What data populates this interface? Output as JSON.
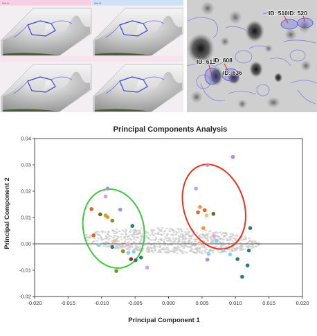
{
  "topLeft": {
    "tiles": [
      {
        "title": "Gel A",
        "band": "#f7cfe4"
      },
      {
        "title": "Gel B",
        "band": "#cfe1f7"
      },
      {
        "title": "",
        "band": "#f7e3ee"
      },
      {
        "title": "",
        "band": "#f7e3ee"
      }
    ]
  },
  "gel": {
    "labels": [
      "ID: 611",
      "ID: 608",
      "ID: 636",
      "ID: 510",
      "ID: 520"
    ]
  },
  "chart_data": {
    "type": "scatter",
    "title": "Principal Components Analysis",
    "xlabel": "Principal Component 1",
    "ylabel": "Principal Component 2",
    "xlim": [
      -0.02,
      0.02
    ],
    "ylim": [
      -0.02,
      0.04
    ],
    "xticks": [
      "-0.020",
      "-0.015",
      "-0.010",
      "-0.005",
      "0.000",
      "0.005",
      "0.010",
      "0.015",
      "0.020"
    ],
    "yticks": [
      "-0.02",
      "-0.01",
      "0.00",
      "0.01",
      "0.02",
      "0.03",
      "0.04"
    ],
    "grid": false,
    "ellipses": [
      {
        "color": "#3cc83c",
        "cx": -0.0082,
        "cy": 0.0058,
        "rx": 0.0045,
        "ry": 0.0152,
        "angle": -14
      },
      {
        "color": "#e8321e",
        "cx": 0.0068,
        "cy": 0.0141,
        "rx": 0.0045,
        "ry": 0.0165,
        "angle": -18
      }
    ],
    "points": [
      {
        "x": -0.0091,
        "y": 0.021,
        "color": "#b489e6"
      },
      {
        "x": -0.0094,
        "y": 0.018,
        "color": "#c6a2ee"
      },
      {
        "x": -0.0115,
        "y": 0.0132,
        "color": "#e8641e"
      },
      {
        "x": -0.0102,
        "y": 0.0112,
        "color": "#6b6b1e"
      },
      {
        "x": -0.0094,
        "y": 0.0108,
        "color": "#b4b41e"
      },
      {
        "x": -0.0072,
        "y": 0.013,
        "color": "#b489e6"
      },
      {
        "x": -0.0091,
        "y": 0.0102,
        "color": "#f0963c"
      },
      {
        "x": -0.0084,
        "y": 0.0088,
        "color": "#8c8c2a"
      },
      {
        "x": -0.0112,
        "y": 0.0032,
        "color": "#e8641e"
      },
      {
        "x": -0.008,
        "y": 0.0012,
        "color": "#f5b98c"
      },
      {
        "x": -0.0104,
        "y": -0.0005,
        "color": "#87d2f0"
      },
      {
        "x": -0.0084,
        "y": -0.0012,
        "color": "#2a7a7a"
      },
      {
        "x": -0.0068,
        "y": -0.0028,
        "color": "#8c8c2a"
      },
      {
        "x": -0.0061,
        "y": -0.0002,
        "color": "#f5a5c8"
      },
      {
        "x": -0.006,
        "y": -0.0034,
        "color": "#87d2f0"
      },
      {
        "x": -0.0056,
        "y": -0.0058,
        "color": "#7a3c1e"
      },
      {
        "x": -0.0049,
        "y": -0.0062,
        "color": "#2a7a7a"
      },
      {
        "x": -0.0041,
        "y": -0.0052,
        "color": "#2a7a7a"
      },
      {
        "x": -0.0054,
        "y": 0.0068,
        "color": "#2a7a7a"
      },
      {
        "x": -0.0078,
        "y": -0.0103,
        "color": "#8c8c2a"
      },
      {
        "x": -0.0052,
        "y": -0.003,
        "color": "#87d2f0"
      },
      {
        "x": -0.0032,
        "y": -0.009,
        "color": "#c6a2ee"
      },
      {
        "x": 0.0058,
        "y": 0.03,
        "color": "#b489e6"
      },
      {
        "x": 0.0096,
        "y": 0.033,
        "color": "#b489e6"
      },
      {
        "x": 0.0041,
        "y": 0.021,
        "color": "#c6a2ee"
      },
      {
        "x": 0.0047,
        "y": 0.014,
        "color": "#f0963c"
      },
      {
        "x": 0.0054,
        "y": 0.0128,
        "color": "#e8641e"
      },
      {
        "x": 0.0057,
        "y": 0.0108,
        "color": "#f5b98c"
      },
      {
        "x": 0.0067,
        "y": 0.0114,
        "color": "#6b6b1e"
      },
      {
        "x": 0.0044,
        "y": 0.012,
        "color": "#e8641e"
      },
      {
        "x": 0.0052,
        "y": 0.006,
        "color": "#f0963c"
      },
      {
        "x": 0.0068,
        "y": 0.003,
        "color": "#f5a5c8"
      },
      {
        "x": 0.0046,
        "y": 0.0002,
        "color": "#f5b98c"
      },
      {
        "x": 0.0072,
        "y": 0.0012,
        "color": "#87d2f0"
      },
      {
        "x": 0.006,
        "y": -0.0038,
        "color": "#87d2f0"
      },
      {
        "x": 0.0082,
        "y": -0.0025,
        "color": "#87d2f0"
      },
      {
        "x": 0.0092,
        "y": -0.004,
        "color": "#87d2f0"
      },
      {
        "x": 0.0122,
        "y": 0.006,
        "color": "#2a7a7a"
      },
      {
        "x": 0.012,
        "y": -0.0025,
        "color": "#2a7a7a"
      },
      {
        "x": 0.0118,
        "y": -0.0082,
        "color": "#2a7a7a"
      },
      {
        "x": 0.0103,
        "y": -0.0058,
        "color": "#2a7a7a"
      },
      {
        "x": 0.011,
        "y": -0.0125,
        "color": "#2a7a7a"
      },
      {
        "x": 0.0058,
        "y": -0.006,
        "color": "#b489e6"
      }
    ]
  }
}
